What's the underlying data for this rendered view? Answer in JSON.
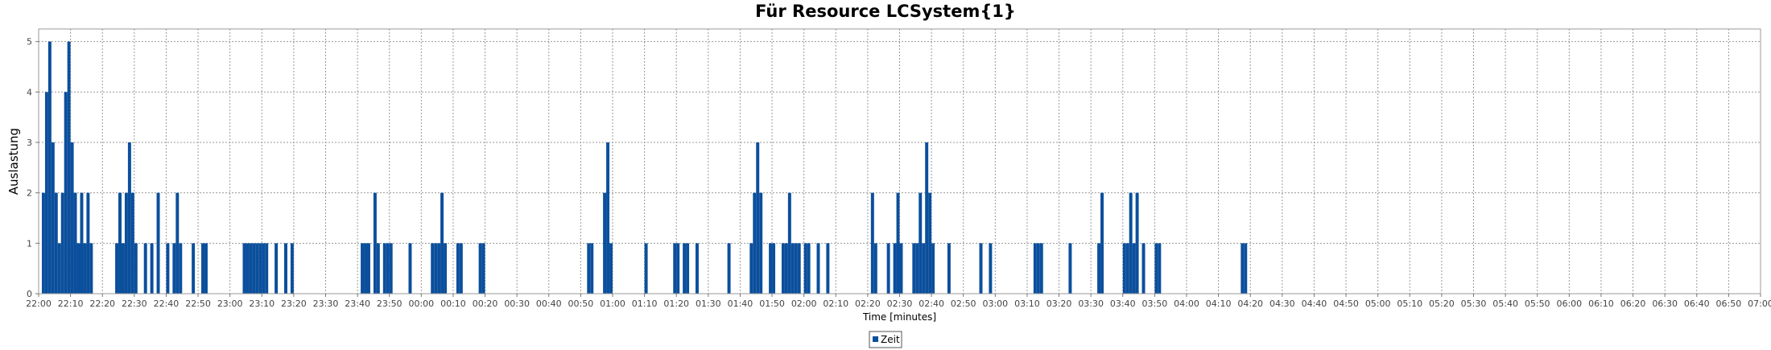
{
  "chart_data": {
    "type": "bar",
    "title": "Für Resource LCSystem{1}",
    "xlabel": "Time [minutes]",
    "ylabel": "Auslastung",
    "x_unit": "HH:MM",
    "xlim": [
      "22:00",
      "07:00"
    ],
    "ylim": [
      0,
      5.25
    ],
    "grid": true,
    "legend_position": "bottom",
    "y_ticks": [
      0,
      1,
      2,
      3,
      4,
      5
    ],
    "x_ticks": [
      "22:00",
      "22:10",
      "22:20",
      "22:30",
      "22:40",
      "22:50",
      "23:00",
      "23:10",
      "23:20",
      "23:30",
      "23:40",
      "23:50",
      "00:00",
      "00:10",
      "00:20",
      "00:30",
      "00:40",
      "00:50",
      "01:00",
      "01:10",
      "01:20",
      "01:30",
      "01:40",
      "01:50",
      "02:00",
      "02:10",
      "02:20",
      "02:30",
      "02:40",
      "02:50",
      "03:00",
      "03:10",
      "03:20",
      "03:30",
      "03:40",
      "03:50",
      "04:00",
      "04:10",
      "04:20",
      "04:30",
      "04:40",
      "04:50",
      "05:00",
      "05:10",
      "05:20",
      "05:30",
      "05:40",
      "05:50",
      "06:00",
      "06:10",
      "06:20",
      "06:30",
      "06:40",
      "06:50",
      "07:00"
    ],
    "series": [
      {
        "name": "Zeit",
        "color": "#0b4f9c",
        "points": [
          [
            "22:01",
            2
          ],
          [
            "22:02",
            4
          ],
          [
            "22:03",
            5
          ],
          [
            "22:04",
            3
          ],
          [
            "22:05",
            2
          ],
          [
            "22:06",
            1
          ],
          [
            "22:07",
            2
          ],
          [
            "22:08",
            4
          ],
          [
            "22:09",
            5
          ],
          [
            "22:10",
            3
          ],
          [
            "22:11",
            2
          ],
          [
            "22:12",
            1
          ],
          [
            "22:13",
            2
          ],
          [
            "22:14",
            1
          ],
          [
            "22:15",
            2
          ],
          [
            "22:16",
            1
          ],
          [
            "22:24",
            1
          ],
          [
            "22:25",
            2
          ],
          [
            "22:26",
            1
          ],
          [
            "22:27",
            2
          ],
          [
            "22:28",
            3
          ],
          [
            "22:29",
            2
          ],
          [
            "22:30",
            1
          ],
          [
            "22:33",
            1
          ],
          [
            "22:35",
            1
          ],
          [
            "22:37",
            2
          ],
          [
            "22:40",
            1
          ],
          [
            "22:42",
            1
          ],
          [
            "22:43",
            2
          ],
          [
            "22:44",
            1
          ],
          [
            "22:48",
            1
          ],
          [
            "22:51",
            1
          ],
          [
            "22:52",
            1
          ],
          [
            "23:04",
            1
          ],
          [
            "23:05",
            1
          ],
          [
            "23:06",
            1
          ],
          [
            "23:07",
            1
          ],
          [
            "23:08",
            1
          ],
          [
            "23:09",
            1
          ],
          [
            "23:10",
            1
          ],
          [
            "23:11",
            1
          ],
          [
            "23:14",
            1
          ],
          [
            "23:17",
            1
          ],
          [
            "23:19",
            1
          ],
          [
            "23:41",
            1
          ],
          [
            "23:42",
            1
          ],
          [
            "23:43",
            1
          ],
          [
            "23:45",
            2
          ],
          [
            "23:46",
            1
          ],
          [
            "23:48",
            1
          ],
          [
            "23:49",
            1
          ],
          [
            "23:50",
            1
          ],
          [
            "23:56",
            1
          ],
          [
            "00:03",
            1
          ],
          [
            "00:04",
            1
          ],
          [
            "00:05",
            1
          ],
          [
            "00:06",
            2
          ],
          [
            "00:07",
            1
          ],
          [
            "00:11",
            1
          ],
          [
            "00:12",
            1
          ],
          [
            "00:18",
            1
          ],
          [
            "00:19",
            1
          ],
          [
            "00:52",
            1
          ],
          [
            "00:53",
            1
          ],
          [
            "00:57",
            2
          ],
          [
            "00:58",
            3
          ],
          [
            "00:59",
            1
          ],
          [
            "01:10",
            1
          ],
          [
            "01:19",
            1
          ],
          [
            "01:20",
            1
          ],
          [
            "01:22",
            1
          ],
          [
            "01:23",
            1
          ],
          [
            "01:26",
            1
          ],
          [
            "01:36",
            1
          ],
          [
            "01:43",
            1
          ],
          [
            "01:44",
            2
          ],
          [
            "01:45",
            3
          ],
          [
            "01:46",
            2
          ],
          [
            "01:49",
            1
          ],
          [
            "01:50",
            1
          ],
          [
            "01:53",
            1
          ],
          [
            "01:54",
            1
          ],
          [
            "01:55",
            2
          ],
          [
            "01:56",
            1
          ],
          [
            "01:57",
            1
          ],
          [
            "01:58",
            1
          ],
          [
            "02:00",
            1
          ],
          [
            "02:01",
            1
          ],
          [
            "02:04",
            1
          ],
          [
            "02:07",
            1
          ],
          [
            "02:21",
            2
          ],
          [
            "02:22",
            1
          ],
          [
            "02:26",
            1
          ],
          [
            "02:28",
            1
          ],
          [
            "02:29",
            2
          ],
          [
            "02:30",
            1
          ],
          [
            "02:34",
            1
          ],
          [
            "02:35",
            1
          ],
          [
            "02:36",
            2
          ],
          [
            "02:37",
            1
          ],
          [
            "02:38",
            3
          ],
          [
            "02:39",
            2
          ],
          [
            "02:40",
            1
          ],
          [
            "02:45",
            1
          ],
          [
            "02:55",
            1
          ],
          [
            "02:58",
            1
          ],
          [
            "03:12",
            1
          ],
          [
            "03:13",
            1
          ],
          [
            "03:14",
            1
          ],
          [
            "03:23",
            1
          ],
          [
            "03:32",
            1
          ],
          [
            "03:33",
            2
          ],
          [
            "03:40",
            1
          ],
          [
            "03:41",
            1
          ],
          [
            "03:42",
            2
          ],
          [
            "03:43",
            1
          ],
          [
            "03:44",
            2
          ],
          [
            "03:46",
            1
          ],
          [
            "03:50",
            1
          ],
          [
            "03:51",
            1
          ],
          [
            "04:17",
            1
          ],
          [
            "04:18",
            1
          ]
        ]
      }
    ]
  }
}
